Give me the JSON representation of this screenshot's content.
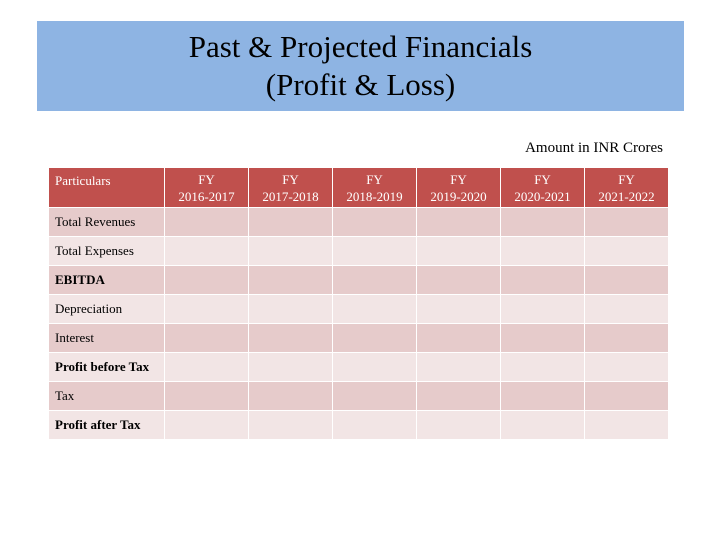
{
  "title": {
    "line1": "Past & Projected Financials",
    "line2": "(Profit & Loss)"
  },
  "units_note": "Amount in INR Crores",
  "table": {
    "particulars_header": "Particulars",
    "years": [
      {
        "line1": "FY",
        "line2": "2016-2017"
      },
      {
        "line1": "FY",
        "line2": "2017-2018"
      },
      {
        "line1": "FY",
        "line2": "2018-2019"
      },
      {
        "line1": "FY",
        "line2": "2019-2020"
      },
      {
        "line1": "FY",
        "line2": "2020-2021"
      },
      {
        "line1": "FY",
        "line2": "2021-2022"
      }
    ],
    "rows": [
      {
        "label": "Total Revenues",
        "bold": false
      },
      {
        "label": "Total Expenses",
        "bold": false
      },
      {
        "label": "EBITDA",
        "bold": true
      },
      {
        "label": "Depreciation",
        "bold": false
      },
      {
        "label": "Interest",
        "bold": false
      },
      {
        "label": "Profit before Tax",
        "bold": true
      },
      {
        "label": "Tax",
        "bold": false
      },
      {
        "label": "Profit after Tax",
        "bold": true
      }
    ]
  },
  "colors": {
    "banner": "#8eb4e3",
    "header": "#c0504d",
    "row_odd": "#e6cbcb",
    "row_even": "#f2e5e5"
  }
}
